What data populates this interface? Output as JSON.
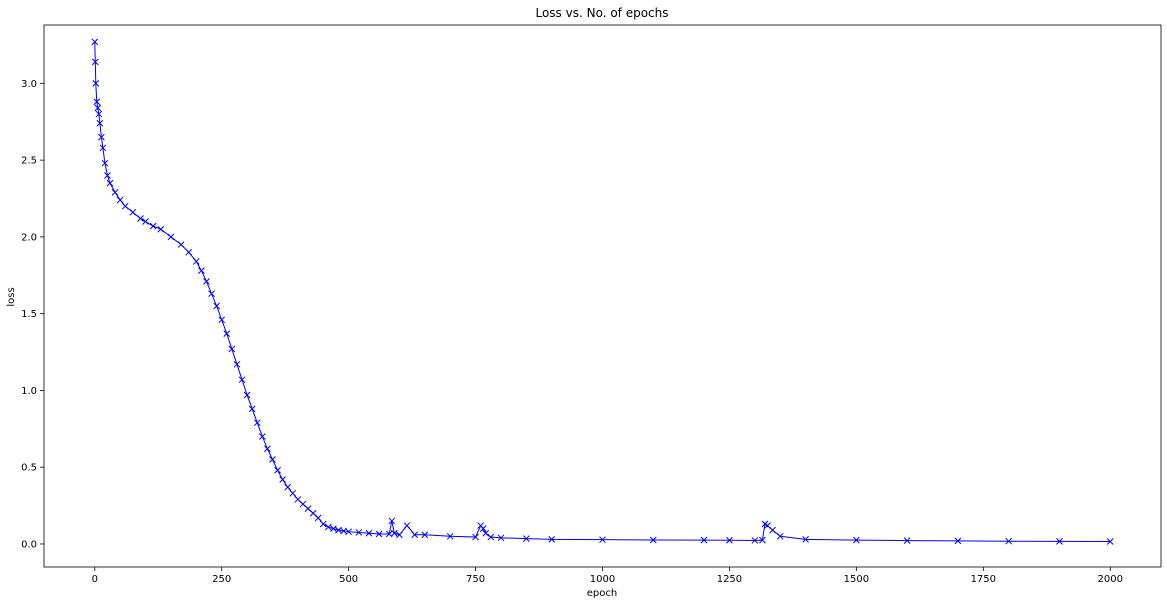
{
  "chart_data": {
    "type": "line",
    "title": "Loss vs. No. of epochs",
    "xlabel": "epoch",
    "ylabel": "loss",
    "xlim": [
      -100,
      2100
    ],
    "ylim": [
      -0.15,
      3.38
    ],
    "xticks": [
      0,
      250,
      500,
      750,
      1000,
      1250,
      1500,
      1750,
      2000
    ],
    "yticks": [
      0.0,
      0.5,
      1.0,
      1.5,
      2.0,
      2.5,
      3.0
    ],
    "ytick_labels": [
      "0.0",
      "0.5",
      "1.0",
      "1.5",
      "2.0",
      "2.5",
      "3.0"
    ],
    "grid": false,
    "series": [
      {
        "color": "#0000ff",
        "marker": "x",
        "x": [
          0,
          1,
          2,
          4,
          6,
          8,
          10,
          13,
          16,
          20,
          25,
          30,
          40,
          50,
          60,
          75,
          90,
          100,
          115,
          130,
          150,
          170,
          185,
          200,
          210,
          220,
          230,
          240,
          250,
          260,
          270,
          280,
          290,
          300,
          310,
          320,
          330,
          340,
          350,
          360,
          370,
          380,
          390,
          400,
          410,
          420,
          430,
          440,
          450,
          460,
          470,
          480,
          490,
          500,
          520,
          540,
          560,
          580,
          585,
          590,
          600,
          615,
          630,
          650,
          700,
          750,
          760,
          765,
          770,
          780,
          800,
          850,
          900,
          1000,
          1100,
          1200,
          1250,
          1300,
          1315,
          1320,
          1325,
          1335,
          1350,
          1400,
          1500,
          1600,
          1700,
          1800,
          1900,
          2000
        ],
        "y": [
          3.27,
          3.14,
          3.0,
          2.88,
          2.84,
          2.8,
          2.74,
          2.65,
          2.58,
          2.48,
          2.4,
          2.35,
          2.29,
          2.24,
          2.2,
          2.16,
          2.12,
          2.1,
          2.07,
          2.05,
          2.0,
          1.95,
          1.9,
          1.84,
          1.78,
          1.71,
          1.63,
          1.55,
          1.46,
          1.37,
          1.27,
          1.17,
          1.07,
          0.97,
          0.88,
          0.79,
          0.7,
          0.62,
          0.55,
          0.48,
          0.42,
          0.37,
          0.33,
          0.29,
          0.26,
          0.23,
          0.2,
          0.17,
          0.13,
          0.11,
          0.1,
          0.09,
          0.085,
          0.08,
          0.075,
          0.07,
          0.065,
          0.065,
          0.15,
          0.07,
          0.06,
          0.12,
          0.06,
          0.06,
          0.05,
          0.045,
          0.12,
          0.1,
          0.07,
          0.045,
          0.04,
          0.035,
          0.03,
          0.028,
          0.026,
          0.025,
          0.024,
          0.023,
          0.025,
          0.13,
          0.12,
          0.09,
          0.05,
          0.03,
          0.025,
          0.022,
          0.02,
          0.018,
          0.017,
          0.016
        ]
      }
    ]
  }
}
